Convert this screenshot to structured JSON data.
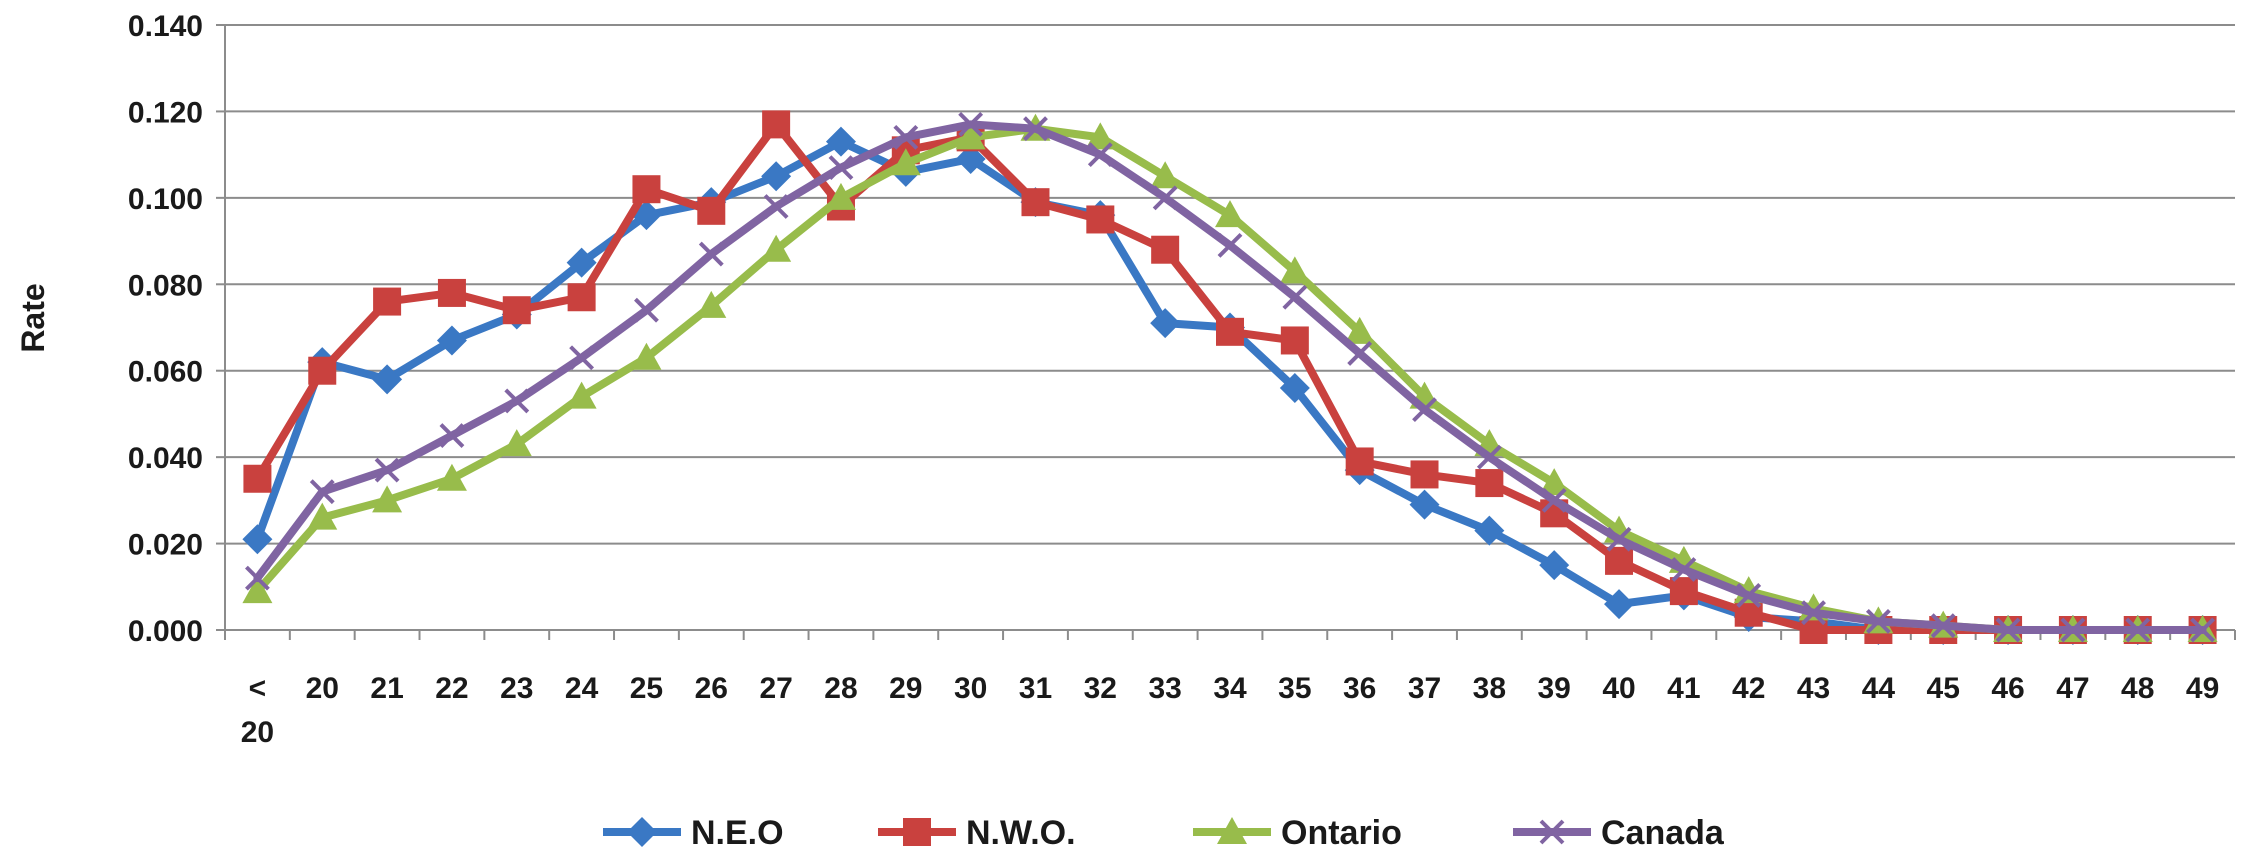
{
  "chart_data": {
    "type": "line",
    "title": "",
    "xlabel": "",
    "ylabel": "Rate",
    "ylim": [
      0,
      0.14
    ],
    "yticks": [
      "0.000",
      "0.020",
      "0.040",
      "0.060",
      "0.080",
      "0.100",
      "0.120",
      "0.140"
    ],
    "categories": [
      "< 20",
      "20",
      "21",
      "22",
      "23",
      "24",
      "25",
      "26",
      "27",
      "28",
      "29",
      "30",
      "31",
      "32",
      "33",
      "34",
      "35",
      "36",
      "37",
      "38",
      "39",
      "40",
      "41",
      "42",
      "43",
      "44",
      "45",
      "46",
      "47",
      "48",
      "49"
    ],
    "grid": true,
    "legend_position": "bottom",
    "series": [
      {
        "name": "N.E.O",
        "color": "#3a78c4",
        "marker": "diamond",
        "values": [
          0.021,
          0.062,
          0.058,
          0.067,
          0.073,
          0.085,
          0.096,
          0.099,
          0.105,
          0.113,
          0.106,
          0.109,
          0.099,
          0.096,
          0.071,
          0.07,
          0.056,
          0.037,
          0.029,
          0.023,
          0.015,
          0.006,
          0.008,
          0.003,
          0.002,
          0.0,
          0.0,
          0.0,
          0.0,
          0.0,
          0.0
        ]
      },
      {
        "name": "N.W.O.",
        "color": "#c9413e",
        "marker": "square",
        "values": [
          0.035,
          0.06,
          0.076,
          0.078,
          0.074,
          0.077,
          0.102,
          0.097,
          0.117,
          0.098,
          0.111,
          0.114,
          0.099,
          0.095,
          0.088,
          0.069,
          0.067,
          0.039,
          0.036,
          0.034,
          0.027,
          0.016,
          0.009,
          0.004,
          0.0,
          0.0,
          0.0,
          0.0,
          0.0,
          0.0,
          0.0
        ]
      },
      {
        "name": "Ontario",
        "color": "#98bc4b",
        "marker": "triangle",
        "values": [
          0.009,
          0.026,
          0.03,
          0.035,
          0.043,
          0.054,
          0.063,
          0.075,
          0.088,
          0.1,
          0.108,
          0.114,
          0.116,
          0.114,
          0.105,
          0.096,
          0.083,
          0.069,
          0.054,
          0.043,
          0.034,
          0.023,
          0.016,
          0.009,
          0.005,
          0.002,
          0.001,
          0.0,
          0.0,
          0.0,
          0.0
        ]
      },
      {
        "name": "Canada",
        "color": "#8064a2",
        "marker": "x",
        "values": [
          0.012,
          0.032,
          0.037,
          0.045,
          0.053,
          0.063,
          0.074,
          0.087,
          0.098,
          0.107,
          0.114,
          0.117,
          0.116,
          0.11,
          0.1,
          0.089,
          0.077,
          0.064,
          0.051,
          0.04,
          0.03,
          0.021,
          0.014,
          0.008,
          0.004,
          0.002,
          0.001,
          0.0,
          0.0,
          0.0,
          0.0
        ]
      }
    ]
  }
}
